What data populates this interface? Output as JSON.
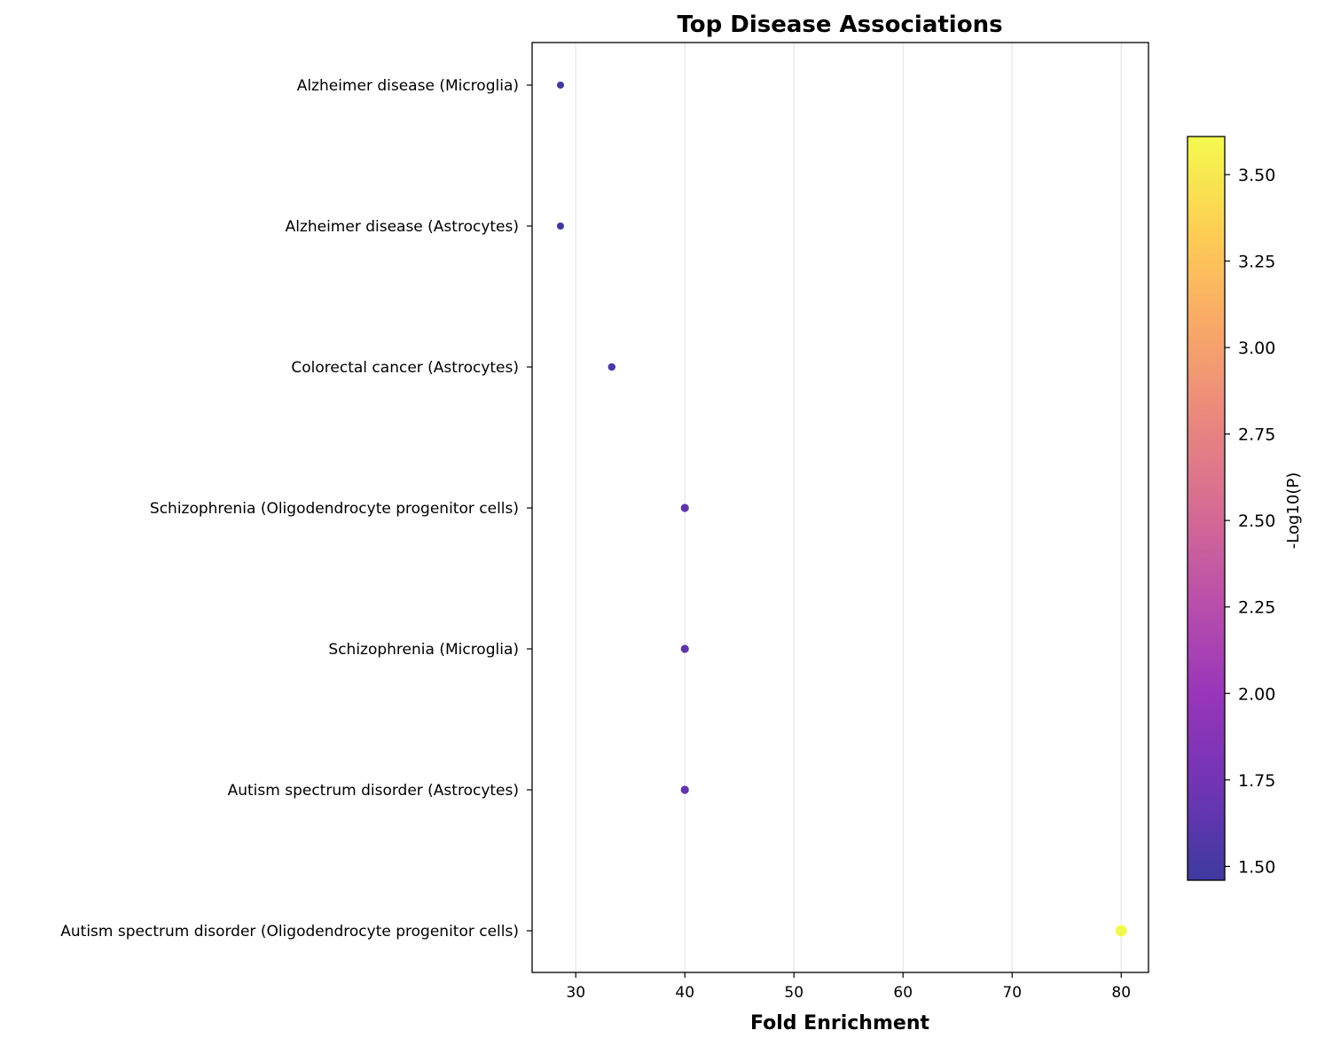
{
  "chart_data": {
    "type": "scatter",
    "title": "Top Disease Associations",
    "xlabel": "Fold Enrichment",
    "ylabel": "",
    "xlim": [
      26,
      82.5
    ],
    "xticks": [
      30,
      40,
      50,
      60,
      70,
      80
    ],
    "grid": "x-only",
    "colormap": "plasma",
    "colorbar": {
      "label": "-Log10(P)",
      "range": [
        1.46,
        3.61
      ],
      "ticks": [
        "1.50",
        "1.75",
        "2.00",
        "2.25",
        "2.50",
        "2.75",
        "3.00",
        "3.25",
        "3.50"
      ]
    },
    "categories": [
      "Alzheimer disease (Microglia)",
      "Alzheimer disease (Astrocytes)",
      "Colorectal cancer (Astrocytes)",
      "Schizophrenia (Oligodendrocyte progenitor cells)",
      "Schizophrenia (Microglia)",
      "Autism spectrum disorder (Astrocytes)",
      "Autism spectrum disorder (Oligodendrocyte progenitor cells)"
    ],
    "points": [
      {
        "category": "Alzheimer disease (Microglia)",
        "x": 28.6,
        "neg_log10_p": 1.46
      },
      {
        "category": "Alzheimer disease (Astrocytes)",
        "x": 28.6,
        "neg_log10_p": 1.46
      },
      {
        "category": "Colorectal cancer (Astrocytes)",
        "x": 33.3,
        "neg_log10_p": 1.55
      },
      {
        "category": "Schizophrenia (Oligodendrocyte progenitor cells)",
        "x": 40.0,
        "neg_log10_p": 1.65
      },
      {
        "category": "Schizophrenia (Microglia)",
        "x": 40.0,
        "neg_log10_p": 1.65
      },
      {
        "category": "Autism spectrum disorder (Astrocytes)",
        "x": 40.0,
        "neg_log10_p": 1.65
      },
      {
        "category": "Autism spectrum disorder (Oligodendrocyte progenitor cells)",
        "x": 80.0,
        "neg_log10_p": 3.61
      }
    ]
  }
}
